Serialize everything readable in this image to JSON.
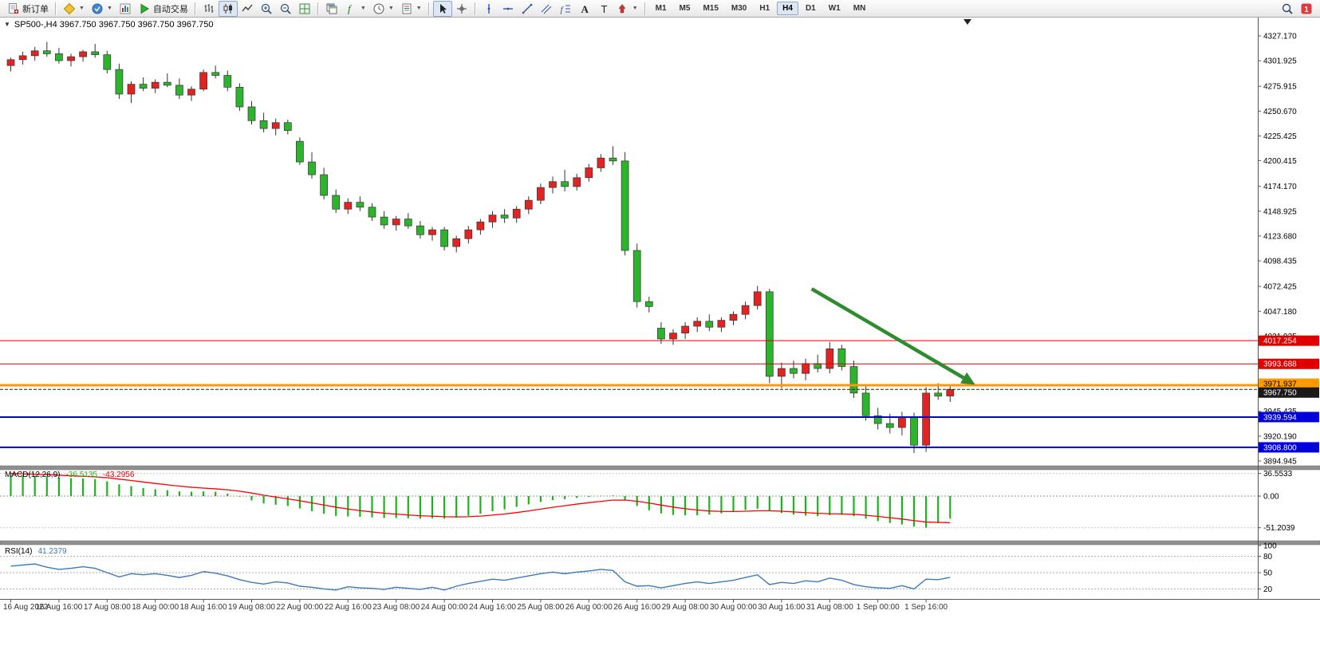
{
  "toolbar": {
    "new_order": "新订单",
    "autotrading": "自动交易",
    "timeframes": [
      "M1",
      "M5",
      "M15",
      "M30",
      "H1",
      "H4",
      "D1",
      "W1",
      "MN"
    ],
    "active_timeframe": "H4",
    "items": [
      {
        "t": "btn",
        "name": "new-order-button",
        "icon": "new-order-icon",
        "label_key": "new_order"
      },
      {
        "t": "sep"
      },
      {
        "t": "icon",
        "name": "new-chart-button",
        "icon": "new-chart-icon",
        "dd": true
      },
      {
        "t": "icon",
        "name": "profiles-button",
        "icon": "profiles-icon",
        "dd": true
      },
      {
        "t": "icon",
        "name": "market-watch-button",
        "icon": "market-watch-icon"
      },
      {
        "t": "btn",
        "name": "autotrading-button",
        "icon": "autotrading-icon",
        "label_key": "autotrading"
      },
      {
        "t": "sep"
      },
      {
        "t": "icon",
        "name": "bar-chart-button",
        "icon": "bar-chart-icon"
      },
      {
        "t": "icon",
        "name": "candlestick-chart-button",
        "icon": "candlestick-chart-icon",
        "active": true
      },
      {
        "t": "icon",
        "name": "line-chart-button",
        "icon": "line-chart-icon"
      },
      {
        "t": "icon",
        "name": "zoom-in-button",
        "icon": "zoom-in-icon"
      },
      {
        "t": "icon",
        "name": "zoom-out-button",
        "icon": "zoom-out-icon"
      },
      {
        "t": "icon",
        "name": "auto-arrange-button",
        "icon": "auto-arrange-icon"
      },
      {
        "t": "sep"
      },
      {
        "t": "icon",
        "name": "tile-windows-button",
        "icon": "tile-windows-icon"
      },
      {
        "t": "icon",
        "name": "indicators-button",
        "icon": "indicators-icon",
        "dd": true
      },
      {
        "t": "icon",
        "name": "periods-button",
        "icon": "periods-icon",
        "dd": true
      },
      {
        "t": "icon",
        "name": "templates-button",
        "icon": "templates-icon",
        "dd": true
      },
      {
        "t": "sep"
      },
      {
        "t": "icon",
        "name": "cursor-button",
        "icon": "cursor-icon",
        "active": true
      },
      {
        "t": "icon",
        "name": "crosshair-button",
        "icon": "crosshair-icon"
      },
      {
        "t": "sep"
      },
      {
        "t": "icon",
        "name": "vertical-line-button",
        "icon": "vertical-line-icon"
      },
      {
        "t": "icon",
        "name": "horizontal-line-button",
        "icon": "horizontal-line-icon"
      },
      {
        "t": "icon",
        "name": "trendline-button",
        "icon": "trendline-icon"
      },
      {
        "t": "icon",
        "name": "channel-button",
        "icon": "channel-icon"
      },
      {
        "t": "icon",
        "name": "fibonacci-button",
        "icon": "fibonacci-icon"
      },
      {
        "t": "icon",
        "name": "text-button",
        "icon": "text-icon"
      },
      {
        "t": "icon",
        "name": "text-label-button",
        "icon": "text-label-icon"
      },
      {
        "t": "icon",
        "name": "arrows-button",
        "icon": "arrows-icon",
        "dd": true
      },
      {
        "t": "sep"
      },
      {
        "t": "tfs"
      }
    ],
    "right_items": [
      {
        "name": "search-button",
        "icon": "search-icon"
      },
      {
        "name": "community-button",
        "icon": "community-icon"
      }
    ]
  },
  "chart": {
    "header": "SP500-,H4 3967.750 3967.750 3967.750 3967.750"
  },
  "chart_data": {
    "type": "candlestick",
    "symbol": "SP500-",
    "period": "H4",
    "ohlc_display": [
      "3967.750",
      "3967.750",
      "3967.750",
      "3967.750"
    ],
    "colors": {
      "candle_up": "#e32222",
      "candle_down": "#2db42d",
      "candle_outline": "#333333",
      "macd_histogram": "#1db31d",
      "macd_signal": "#ff0000",
      "rsi_line": "#3a7abf",
      "arrow": "#2e8b2e",
      "level_red": "#e00000",
      "level_orange": "#ff9900",
      "level_blue": "#0000dd",
      "current_price_line": "#1a1a1a"
    },
    "price_axis_labels": [
      "4327.170",
      "4301.925",
      "4275.915",
      "4250.670",
      "4225.425",
      "4200.415",
      "4174.170",
      "4148.925",
      "4123.680",
      "4098.435",
      "4072.425",
      "4047.180",
      "4021.935",
      "3945.435",
      "3920.190",
      "3894.945"
    ],
    "price_axis_range": {
      "top": 4327.17,
      "bottom": 3894.945
    },
    "time_axis": {
      "labels": [
        "16 Aug 2022",
        "16 Aug 16:00",
        "17 Aug 08:00",
        "18 Aug 00:00",
        "18 Aug 16:00",
        "19 Aug 08:00",
        "22 Aug 00:00",
        "22 Aug 16:00",
        "23 Aug 08:00",
        "24 Aug 00:00",
        "24 Aug 16:00",
        "25 Aug 08:00",
        "26 Aug 00:00",
        "26 Aug 16:00",
        "29 Aug 08:00",
        "30 Aug 00:00",
        "30 Aug 16:00",
        "31 Aug 08:00",
        "1 Sep 00:00",
        "1 Sep 16:00"
      ],
      "bar_index": [
        0,
        4,
        8,
        12,
        16,
        20,
        24,
        28,
        32,
        36,
        40,
        44,
        48,
        52,
        56,
        60,
        64,
        68,
        72,
        76
      ]
    },
    "candles_ohlc": [
      [
        4297,
        4305,
        4291,
        4303
      ],
      [
        4303,
        4311,
        4298,
        4307
      ],
      [
        4307,
        4316,
        4302,
        4312
      ],
      [
        4312,
        4321,
        4306,
        4309
      ],
      [
        4309,
        4315,
        4299,
        4302
      ],
      [
        4302,
        4309,
        4296,
        4306
      ],
      [
        4306,
        4313,
        4301,
        4311
      ],
      [
        4311,
        4319,
        4305,
        4308
      ],
      [
        4308,
        4312,
        4289,
        4293
      ],
      [
        4293,
        4299,
        4263,
        4268
      ],
      [
        4268,
        4281,
        4259,
        4278
      ],
      [
        4278,
        4285,
        4271,
        4274
      ],
      [
        4274,
        4283,
        4269,
        4280
      ],
      [
        4280,
        4289,
        4275,
        4277
      ],
      [
        4277,
        4284,
        4263,
        4267
      ],
      [
        4267,
        4276,
        4261,
        4273
      ],
      [
        4273,
        4293,
        4271,
        4290
      ],
      [
        4290,
        4297,
        4284,
        4287
      ],
      [
        4287,
        4292,
        4271,
        4275
      ],
      [
        4275,
        4279,
        4251,
        4255
      ],
      [
        4255,
        4261,
        4237,
        4241
      ],
      [
        4241,
        4249,
        4229,
        4233
      ],
      [
        4233,
        4243,
        4226,
        4239
      ],
      [
        4239,
        4242,
        4227,
        4231
      ],
      [
        4220,
        4224,
        4196,
        4199
      ],
      [
        4199,
        4209,
        4182,
        4186
      ],
      [
        4186,
        4193,
        4161,
        4165
      ],
      [
        4165,
        4171,
        4147,
        4151
      ],
      [
        4151,
        4162,
        4146,
        4158
      ],
      [
        4158,
        4164,
        4149,
        4153
      ],
      [
        4153,
        4157,
        4139,
        4143
      ],
      [
        4143,
        4149,
        4131,
        4135
      ],
      [
        4135,
        4144,
        4129,
        4141
      ],
      [
        4141,
        4147,
        4131,
        4134
      ],
      [
        4134,
        4139,
        4121,
        4125
      ],
      [
        4125,
        4133,
        4119,
        4130
      ],
      [
        4130,
        4133,
        4109,
        4113
      ],
      [
        4113,
        4124,
        4107,
        4121
      ],
      [
        4121,
        4134,
        4116,
        4130
      ],
      [
        4130,
        4141,
        4125,
        4138
      ],
      [
        4138,
        4149,
        4132,
        4145
      ],
      [
        4145,
        4151,
        4137,
        4142
      ],
      [
        4142,
        4154,
        4137,
        4151
      ],
      [
        4151,
        4164,
        4146,
        4160
      ],
      [
        4160,
        4177,
        4156,
        4173
      ],
      [
        4173,
        4184,
        4167,
        4179
      ],
      [
        4179,
        4191,
        4169,
        4174
      ],
      [
        4174,
        4187,
        4170,
        4183
      ],
      [
        4183,
        4197,
        4179,
        4193
      ],
      [
        4193,
        4207,
        4189,
        4203
      ],
      [
        4203,
        4215,
        4196,
        4200
      ],
      [
        4200,
        4209,
        4104,
        4109
      ],
      [
        4109,
        4116,
        4051,
        4057
      ],
      [
        4057,
        4062,
        4046,
        4052
      ],
      [
        4030,
        4036,
        4014,
        4019
      ],
      [
        4019,
        4029,
        4013,
        4025
      ],
      [
        4025,
        4036,
        4019,
        4032
      ],
      [
        4032,
        4041,
        4026,
        4037
      ],
      [
        4037,
        4044,
        4027,
        4031
      ],
      [
        4031,
        4041,
        4026,
        4038
      ],
      [
        4038,
        4047,
        4033,
        4044
      ],
      [
        4044,
        4057,
        4039,
        4053
      ],
      [
        4053,
        4073,
        4049,
        4067
      ],
      [
        4067,
        4070,
        3974,
        3981
      ],
      [
        3981,
        3995,
        3969,
        3989
      ],
      [
        3989,
        3997,
        3979,
        3984
      ],
      [
        3984,
        3999,
        3977,
        3994
      ],
      [
        3994,
        4003,
        3985,
        3989
      ],
      [
        3989,
        4016,
        3984,
        4009
      ],
      [
        4009,
        4013,
        3987,
        3991
      ],
      [
        3991,
        3997,
        3959,
        3964
      ],
      [
        3964,
        3971,
        3936,
        3941
      ],
      [
        3941,
        3949,
        3927,
        3933
      ],
      [
        3933,
        3943,
        3923,
        3929
      ],
      [
        3929,
        3945,
        3921,
        3939
      ],
      [
        3939,
        3944,
        3903,
        3911
      ],
      [
        3911,
        3970,
        3904,
        3964
      ],
      [
        3964,
        3974,
        3957,
        3961
      ],
      [
        3961,
        3971,
        3955,
        3967.75
      ]
    ],
    "horizontal_lines": [
      {
        "price": 4017.254,
        "label": "4017.254",
        "color": "#e00000",
        "width": 1,
        "text_color": "#ffffff"
      },
      {
        "price": 3993.688,
        "label": "3993.688",
        "color": "#e00000",
        "width": 1,
        "text_color": "#ffffff"
      },
      {
        "price": 3971.937,
        "label": "3971.937",
        "color": "#ff9900",
        "width": 3,
        "text_color": "#000000"
      },
      {
        "price": 3939.594,
        "label": "3939.594",
        "color": "#0000dd",
        "width": 2,
        "text_color": "#ffffff"
      },
      {
        "price": 3908.8,
        "label": "3908.800",
        "color": "#0000dd",
        "width": 2,
        "text_color": "#ffffff"
      }
    ],
    "current_price": {
      "value": 3967.75,
      "label": "3967.750",
      "badge_bg": "#1a1a1a",
      "text_color": "#ffffff"
    },
    "annotations": [
      {
        "type": "arrow",
        "from_bar": 66.5,
        "from_price": 4070,
        "to_bar": 80,
        "to_price": 3973,
        "color": "#2e8b2e"
      }
    ],
    "indicators": {
      "macd": {
        "label": "MACD(12,26,9)",
        "value_main": "-36.5135",
        "value_signal": "-43.2956",
        "scale_labels": [
          "36.5533",
          "0.00",
          "-51.2039"
        ],
        "scale_values": [
          36.5533,
          0,
          -51.2039
        ],
        "histogram": [
          34,
          33.5,
          33,
          32,
          30,
          29,
          28.5,
          27.5,
          24,
          19,
          16,
          13,
          11,
          9.5,
          7.5,
          7,
          7.5,
          7,
          4,
          -1,
          -7,
          -12,
          -14,
          -16,
          -20,
          -24.5,
          -28.5,
          -32,
          -33,
          -33.5,
          -34.5,
          -35.5,
          -35.5,
          -36,
          -36.5,
          -36,
          -36.5,
          -35,
          -32,
          -28.5,
          -24.5,
          -21.5,
          -17.5,
          -13.5,
          -9.5,
          -6.5,
          -5,
          -3,
          -1.5,
          0.5,
          1,
          -6,
          -16,
          -23,
          -28,
          -30.5,
          -31,
          -31,
          -30,
          -28,
          -25.5,
          -22.5,
          -20.5,
          -24,
          -27.5,
          -30,
          -31.5,
          -32.5,
          -31,
          -30.5,
          -32.5,
          -36.5,
          -40.5,
          -43.5,
          -46,
          -49.5,
          -51.2,
          -44,
          -36.51
        ],
        "signal": [
          36.55,
          36,
          35.4,
          34.7,
          33.8,
          32.8,
          32,
          31.1,
          29.7,
          27.5,
          25.2,
          22.8,
          20.4,
          18.2,
          16.1,
          14.3,
          12.9,
          11.7,
          10.2,
          7.9,
          4.9,
          1.5,
          -1.6,
          -4.5,
          -7.6,
          -11,
          -14.5,
          -18,
          -21,
          -23.5,
          -25.7,
          -27.7,
          -29.2,
          -30.6,
          -31.8,
          -32.6,
          -33.4,
          -33.7,
          -33.4,
          -32.4,
          -30.8,
          -29,
          -26.7,
          -24,
          -21.1,
          -18.2,
          -15.6,
          -13,
          -10.7,
          -8.5,
          -6.6,
          -6.5,
          -8.4,
          -11.3,
          -14.6,
          -17.8,
          -20.5,
          -22.6,
          -24.1,
          -24.8,
          -25,
          -24.5,
          -23.7,
          -23.7,
          -24.5,
          -25.6,
          -26.8,
          -27.9,
          -28.5,
          -28.9,
          -29.6,
          -31,
          -32.9,
          -35,
          -37.2,
          -39.7,
          -42,
          -42.4,
          -43.3
        ]
      },
      "rsi": {
        "label": "RSI(14)",
        "value": "41.2379",
        "level_labels": [
          "100",
          "80",
          "50",
          "20"
        ],
        "levels": [
          100,
          80,
          50,
          20
        ],
        "dashed_levels": [
          80,
          50,
          20
        ],
        "values": [
          62,
          64,
          66,
          60,
          56,
          58,
          61,
          58,
          50,
          42,
          48,
          46,
          48,
          45,
          41,
          45,
          52,
          49,
          44,
          37,
          32,
          29,
          33,
          31,
          25,
          23,
          20,
          18,
          24,
          22,
          21,
          19,
          23,
          21,
          19,
          23,
          18,
          25,
          30,
          34,
          38,
          36,
          40,
          44,
          48,
          51,
          48,
          51,
          53,
          56,
          54,
          33,
          25,
          26,
          22,
          26,
          30,
          33,
          30,
          33,
          36,
          41,
          46,
          28,
          32,
          30,
          35,
          33,
          40,
          36,
          28,
          24,
          22,
          21,
          26,
          20,
          38,
          37,
          41.24
        ]
      }
    }
  }
}
